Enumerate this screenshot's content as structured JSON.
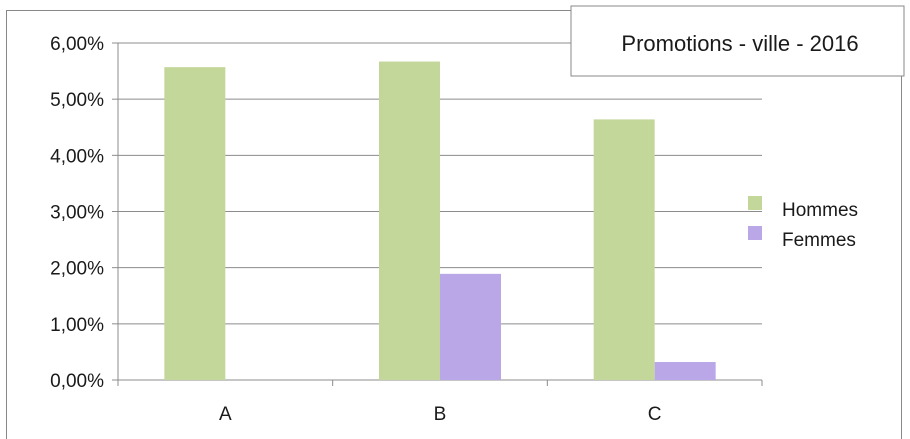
{
  "chart_data": {
    "type": "bar",
    "title": "Promotions - ville - 2016",
    "categories": [
      "A",
      "B",
      "C"
    ],
    "series": [
      {
        "name": "Hommes",
        "values": [
          5.57,
          5.67,
          4.64
        ],
        "color": "#c4d79b"
      },
      {
        "name": "Femmes",
        "values": [
          0.0,
          1.89,
          0.32
        ],
        "color": "#b9a7e8"
      }
    ],
    "y_ticks": [
      "0,00%",
      "1,00%",
      "2,00%",
      "3,00%",
      "4,00%",
      "5,00%",
      "6,00%"
    ],
    "ylim": [
      0,
      6
    ],
    "y_unit": "%",
    "grid": true,
    "legend_position": "right"
  }
}
